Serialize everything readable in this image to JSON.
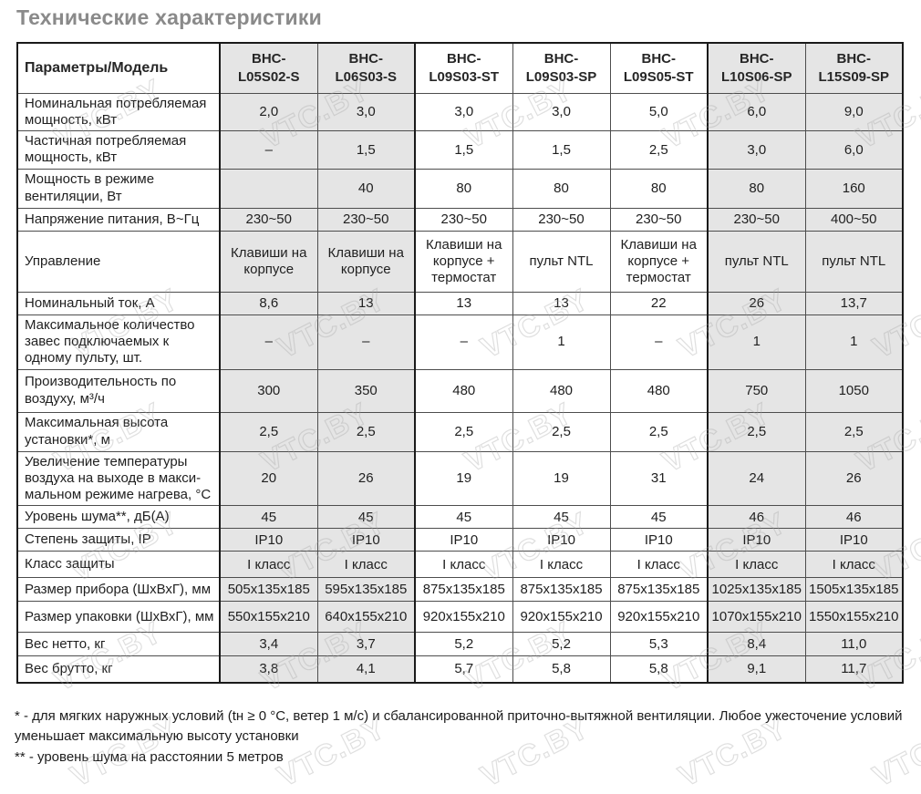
{
  "title": "Технические характеристики",
  "watermark": {
    "text": "VTC.BY"
  },
  "table": {
    "param_header": "Параметры/Модель",
    "models": [
      {
        "label": "ВНС-\nL05S02-S",
        "shaded": true
      },
      {
        "label": "ВНС-\nL06S03-S",
        "shaded": true
      },
      {
        "label": "ВНС-\nL09S03-ST",
        "shaded": false
      },
      {
        "label": "ВНС-\nL09S03-SP",
        "shaded": false
      },
      {
        "label": "ВНС-\nL09S05-ST",
        "shaded": false
      },
      {
        "label": "ВНС-\nL10S06-SP",
        "shaded": true
      },
      {
        "label": "ВНС-\nL15S09-SP",
        "shaded": true
      }
    ],
    "rows": [
      {
        "param": "Номинальная потребляемая мощность, кВт",
        "values": [
          "2,0",
          "3,0",
          "3,0",
          "3,0",
          "5,0",
          "6,0",
          "9,0"
        ]
      },
      {
        "param": "Частичная потребляемая мощность, кВт",
        "values": [
          "–",
          "1,5",
          "1,5",
          "1,5",
          "2,5",
          "3,0",
          "6,0"
        ]
      },
      {
        "param": "Мощность в режиме вентиляции, Вт",
        "values": [
          "",
          "40",
          "80",
          "80",
          "80",
          "80",
          "160"
        ]
      },
      {
        "param": "Напряжение питания, В~Гц",
        "values": [
          "230~50",
          "230~50",
          "230~50",
          "230~50",
          "230~50",
          "230~50",
          "400~50"
        ]
      },
      {
        "param": "Управление",
        "values": [
          "Клавиши на корпусе",
          "Клавиши на корпусе",
          "Клавиши на корпусе + термостат",
          "пульт NTL",
          "Клавиши на корпусе + термостат",
          "пульт NTL",
          "пульт NTL"
        ]
      },
      {
        "param": "Номинальный ток, А",
        "values": [
          "8,6",
          "13",
          "13",
          "13",
          "22",
          "26",
          "13,7"
        ]
      },
      {
        "param": "Максимальное количество завес подключаемых к одному пульту, шт.",
        "values": [
          "–",
          "–",
          "–",
          "1",
          "–",
          "1",
          "1"
        ]
      },
      {
        "param": "Производительность по воздуху, м³/ч",
        "values": [
          "300",
          "350",
          "480",
          "480",
          "480",
          "750",
          "1050"
        ]
      },
      {
        "param": "Максимальная высота установки*, м",
        "values": [
          "2,5",
          "2,5",
          "2,5",
          "2,5",
          "2,5",
          "2,5",
          "2,5"
        ]
      },
      {
        "param": "Увеличение температуры воздуха на выходе в макси-мальном режиме нагрева, °С",
        "values": [
          "20",
          "26",
          "19",
          "19",
          "31",
          "24",
          "26"
        ]
      },
      {
        "param": "Уровень шума**, дБ(А)",
        "values": [
          "45",
          "45",
          "45",
          "45",
          "45",
          "46",
          "46"
        ]
      },
      {
        "param": "Степень защиты, IP",
        "values": [
          "IP10",
          "IP10",
          "IP10",
          "IP10",
          "IP10",
          "IP10",
          "IP10"
        ]
      },
      {
        "param": "Класс защиты",
        "values": [
          "I класс",
          "I класс",
          "I класс",
          "I класс",
          "I класс",
          "I класс",
          "I класс"
        ]
      },
      {
        "param": "Размер прибора (ШхВхГ), мм",
        "values": [
          "505x135x185",
          "595x135x185",
          "875x135x185",
          "875x135x185",
          "875x135x185",
          "1025x135x185",
          "1505x135x185"
        ]
      },
      {
        "param": "Размер упаковки (ШхВхГ), мм",
        "values": [
          "550x155x210",
          "640x155x210",
          "920x155x210",
          "920x155x210",
          "920x155x210",
          "1070x155x210",
          "1550x155x210"
        ]
      },
      {
        "param": "Вес нетто, кг",
        "values": [
          "3,4",
          "3,7",
          "5,2",
          "5,2",
          "5,3",
          "8,4",
          "11,0"
        ]
      },
      {
        "param": "Вес брутто, кг",
        "values": [
          "3,8",
          "4,1",
          "5,7",
          "5,8",
          "5,8",
          "9,1",
          "11,7"
        ]
      }
    ]
  },
  "footnotes": [
    "* - для мягких наружных условий (tн ≥ 0 °С, ветер 1 м/с) и сбалансированной приточно-вытяжной вентиляции. Любое ужесточение условий уменьшает максимальную высоту установки",
    "** - уровень шума на расстоянии 5 метров"
  ],
  "colors": {
    "shaded_cell": "#e5e5e5",
    "border_thin": "#4d4d4d",
    "border_thick": "#1a1a1a",
    "title": "#8a8a8a"
  }
}
